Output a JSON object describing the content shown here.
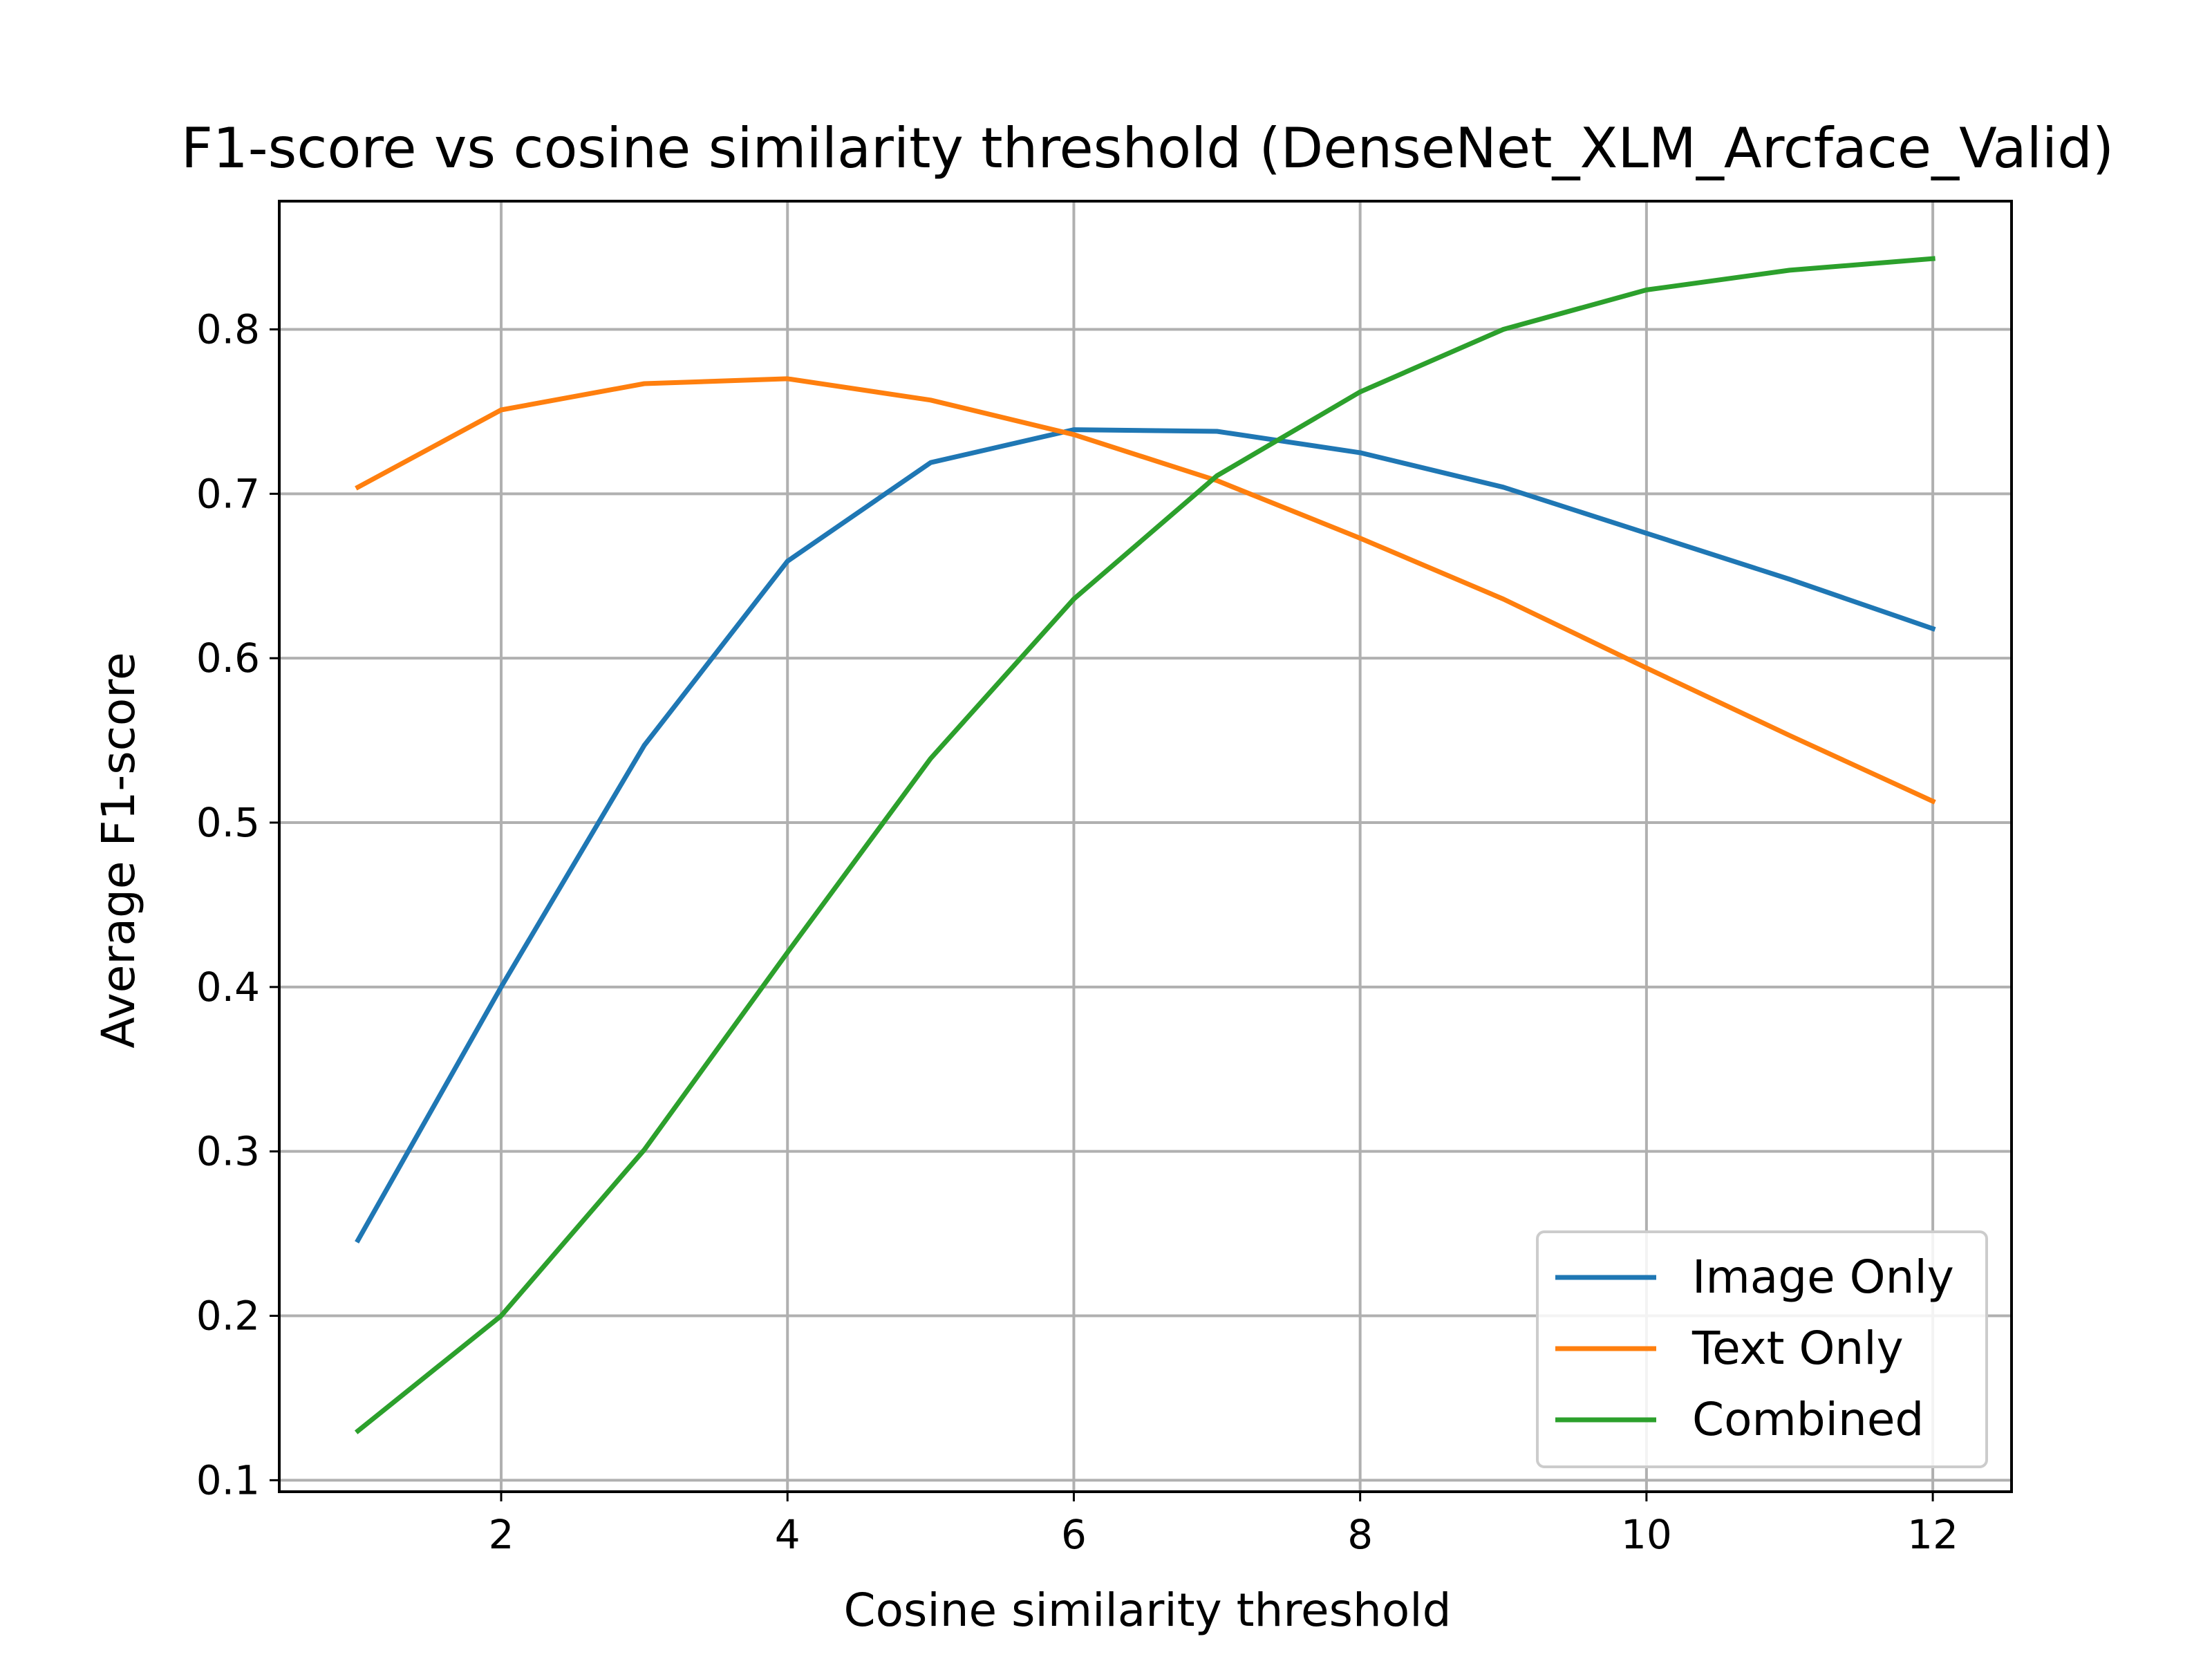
{
  "chart_data": {
    "type": "line",
    "title": "F1-score vs cosine similarity threshold (DenseNet_XLM_Arcface_Valid)",
    "xlabel": "Cosine similarity threshold",
    "ylabel": "Average F1-score",
    "x": [
      1,
      2,
      3,
      4,
      5,
      6,
      7,
      8,
      9,
      10,
      11,
      12
    ],
    "xlim": [
      0.45,
      12.55
    ],
    "ylim": [
      0.093,
      0.878
    ],
    "xticks": [
      2,
      4,
      6,
      8,
      10,
      12
    ],
    "xtick_labels": [
      "2",
      "4",
      "6",
      "8",
      "10",
      "12"
    ],
    "yticks": [
      0.1,
      0.2,
      0.3,
      0.4,
      0.5,
      0.6,
      0.7,
      0.8
    ],
    "ytick_labels": [
      "0.1",
      "0.2",
      "0.3",
      "0.4",
      "0.5",
      "0.6",
      "0.7",
      "0.8"
    ],
    "grid": true,
    "legend_position": "lower-right",
    "series": [
      {
        "name": "Image Only",
        "color": "#1f77b4",
        "values": [
          0.246,
          0.4,
          0.547,
          0.659,
          0.719,
          0.739,
          0.738,
          0.725,
          0.704,
          0.676,
          0.648,
          0.618
        ]
      },
      {
        "name": "Text Only",
        "color": "#ff7f0e",
        "values": [
          0.704,
          0.751,
          0.767,
          0.77,
          0.757,
          0.736,
          0.708,
          0.673,
          0.636,
          0.594,
          0.553,
          0.513
        ]
      },
      {
        "name": "Combined",
        "color": "#2ca02c",
        "values": [
          0.13,
          0.2,
          0.301,
          0.421,
          0.539,
          0.636,
          0.711,
          0.762,
          0.8,
          0.824,
          0.836,
          0.843
        ]
      }
    ]
  }
}
